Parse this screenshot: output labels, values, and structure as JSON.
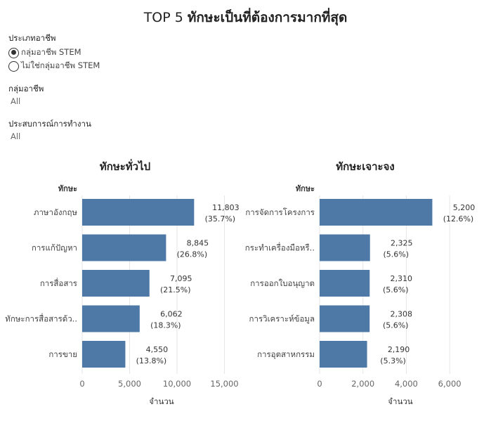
{
  "title_prefix": "TOP 5",
  "title_main": "ทักษะเป็นที่ต้องการมากที่สุด",
  "filters": {
    "occupation_type": {
      "label": "ประเภทอาชีพ",
      "options": [
        "กลุ่มอาชีพ STEM",
        "ไม่ใช่กลุ่มอาชีพ STEM"
      ],
      "selected": "กลุ่มอาชีพ STEM"
    },
    "occupation_group": {
      "label": "กลุ่มอาชีพ",
      "value": "All"
    },
    "experience": {
      "label": "ประสบการณ์การทำงาน",
      "value": "All"
    }
  },
  "chart_data": [
    {
      "type": "bar",
      "orientation": "horizontal",
      "title": "ทักษะทั่วไป",
      "ylabel": "ทักษะ",
      "xlabel": "จำนวน",
      "color": "#4e79a7",
      "categories": [
        "ภาษาอังกฤษ",
        "การแก้ปัญหา",
        "การสื่อสาร",
        "ทักษะการสื่อสารด้ว..",
        "การขาย"
      ],
      "values": [
        11803,
        8845,
        7095,
        6062,
        4550
      ],
      "value_labels": [
        "11,803",
        "8,845",
        "7,095",
        "6,062",
        "4,550"
      ],
      "percent_labels": [
        "(35.7%)",
        "(26.8%)",
        "(21.5%)",
        "(18.3%)",
        "(13.8%)"
      ],
      "xlim": [
        0,
        16000
      ],
      "xticks": [
        0,
        5000,
        10000,
        15000
      ],
      "xtick_labels": [
        "0",
        "5,000",
        "10,000",
        "15,000"
      ],
      "grid": true
    },
    {
      "type": "bar",
      "orientation": "horizontal",
      "title": "ทักษะเจาะจง",
      "ylabel": "ทักษะ",
      "xlabel": "จำนวน",
      "color": "#4e79a7",
      "categories": [
        "การจัดการโครงการ",
        "กระทำเครื่องมือหรื..",
        "การออกใบอนุญาต",
        "การวิเคราะห์ข้อมูล",
        "การอุตสาหกรรม"
      ],
      "values": [
        5200,
        2325,
        2310,
        2308,
        2190
      ],
      "value_labels": [
        "5,200",
        "2,325",
        "2,310",
        "2,308",
        "2,190"
      ],
      "percent_labels": [
        "(12.6%)",
        "(5.6%)",
        "(5.6%)",
        "(5.6%)",
        "(5.3%)"
      ],
      "xlim": [
        0,
        7000
      ],
      "xticks": [
        0,
        2000,
        4000,
        6000
      ],
      "xtick_labels": [
        "0",
        "2,000",
        "4,000",
        "6,000"
      ],
      "grid": true
    }
  ]
}
